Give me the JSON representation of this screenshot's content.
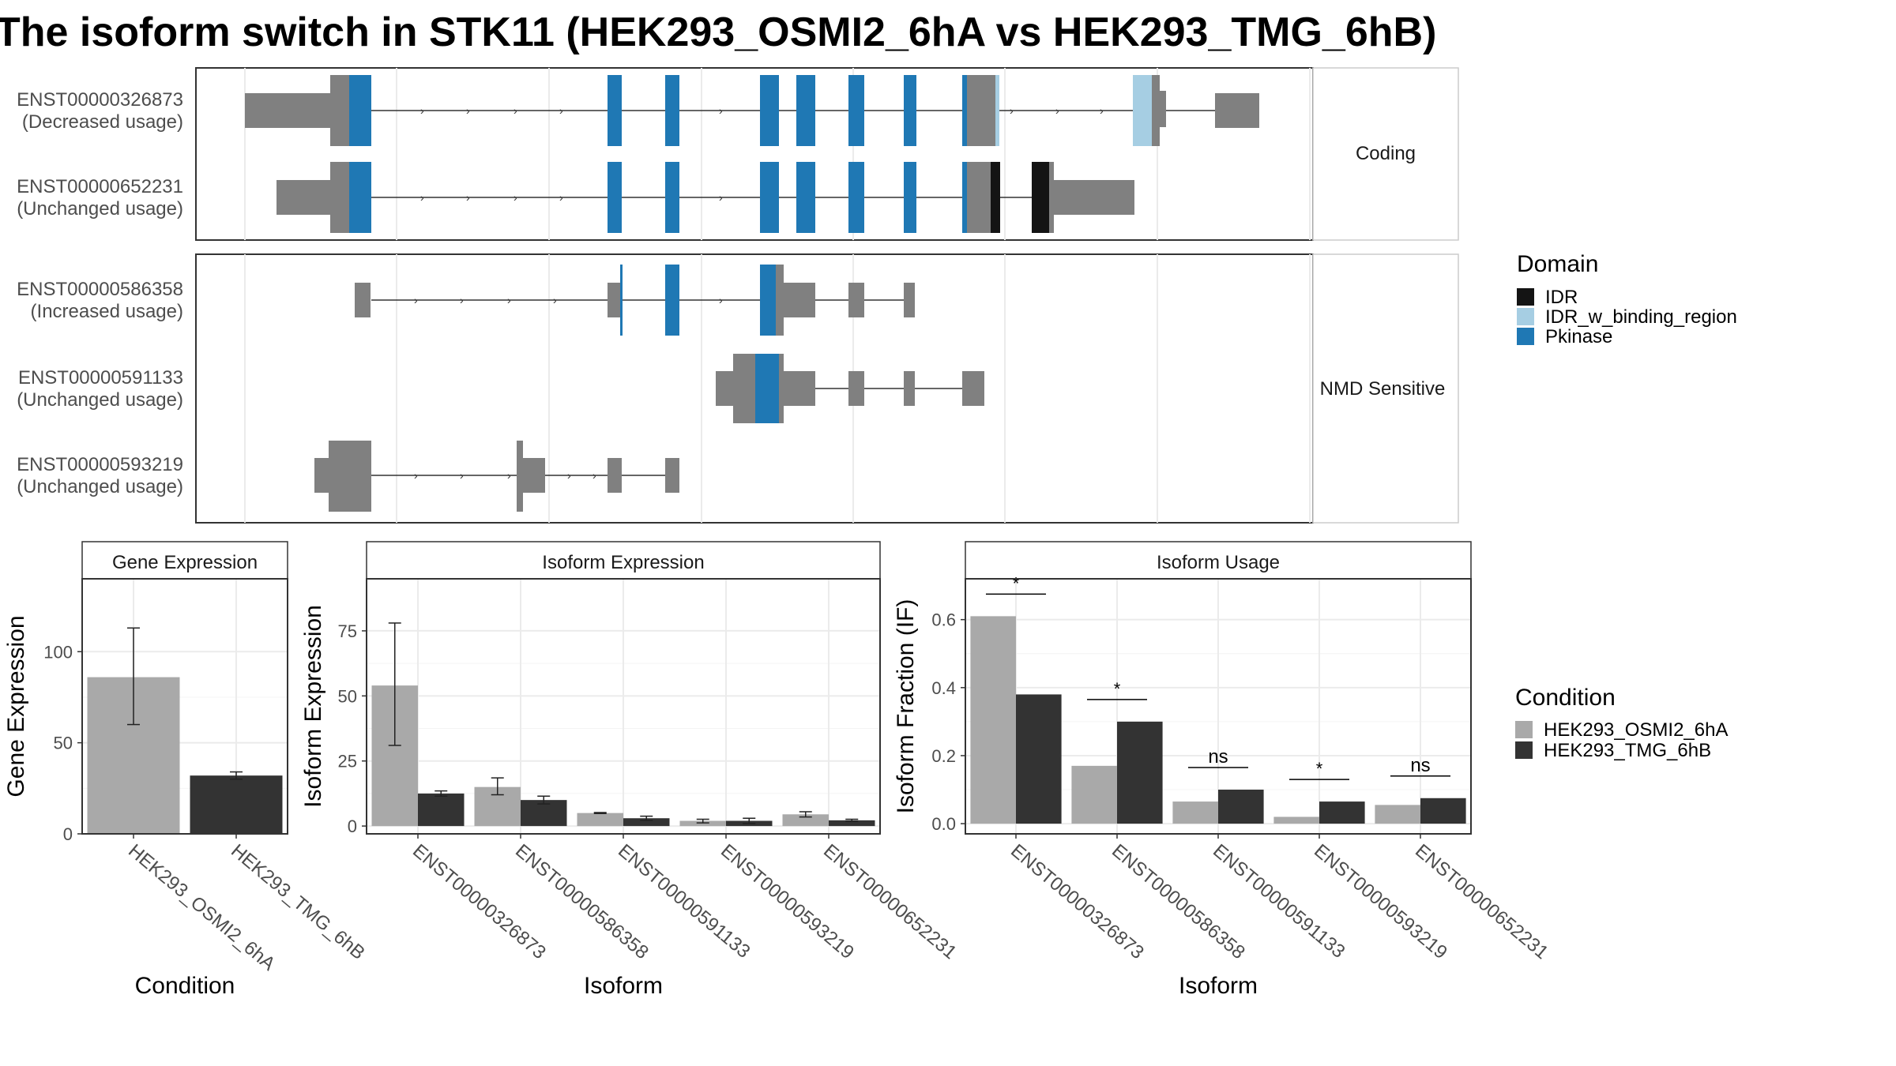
{
  "title": "The isoform switch in STK11 (HEK293_OSMI2_6hA vs HEK293_TMG_6hB)",
  "colors": {
    "domain_IDR": "#141414",
    "domain_IDR_w_binding_region": "#A6CEE3",
    "domain_Pkinase": "#1F78B4",
    "exon": "#808080",
    "cond_a": "#A9A9A9",
    "cond_b": "#333333"
  },
  "structure": {
    "groups": [
      {
        "label": "Coding",
        "isoforms": [
          {
            "id": "ENST00000326873",
            "usage": "(Decreased usage)"
          },
          {
            "id": "ENST00000652231",
            "usage": "(Unchanged usage)"
          }
        ]
      },
      {
        "label": "NMD Sensitive",
        "isoforms": [
          {
            "id": "ENST00000586358",
            "usage": "(Increased usage)"
          },
          {
            "id": "ENST00000591133",
            "usage": "(Unchanged usage)"
          },
          {
            "id": "ENST00000593219",
            "usage": "(Unchanged usage)"
          }
        ]
      }
    ]
  },
  "legend_domain": {
    "title": "Domain",
    "items": [
      {
        "label": "IDR",
        "color": "#141414"
      },
      {
        "label": "IDR_w_binding_region",
        "color": "#A6CEE3"
      },
      {
        "label": "Pkinase",
        "color": "#1F78B4"
      }
    ]
  },
  "legend_condition": {
    "title": "Condition",
    "items": [
      {
        "label": "HEK293_OSMI2_6hA",
        "color": "#A9A9A9"
      },
      {
        "label": "HEK293_TMG_6hB",
        "color": "#333333"
      }
    ]
  },
  "chart_data": [
    {
      "type": "bar",
      "title": "Gene Expression",
      "xlabel": "Condition",
      "ylabel": "Gene Expression",
      "categories": [
        "HEK293_OSMI2_6hA",
        "HEK293_TMG_6hB"
      ],
      "values": [
        86,
        32
      ],
      "errors": [
        [
          60,
          113
        ],
        [
          30,
          34
        ]
      ],
      "yticks": [
        0,
        50,
        100
      ],
      "ylim": [
        0,
        140
      ]
    },
    {
      "type": "bar",
      "title": "Isoform Expression",
      "xlabel": "Isoform",
      "ylabel": "Isoform Expression",
      "categories": [
        "ENST00000326873",
        "ENST00000586358",
        "ENST00000591133",
        "ENST00000593219",
        "ENST00000652231"
      ],
      "series": [
        {
          "name": "HEK293_OSMI2_6hA",
          "values": [
            54,
            15,
            5,
            2,
            4.5
          ],
          "errors": [
            [
              31,
              78
            ],
            [
              12,
              18.5
            ],
            [
              4.8,
              5.2
            ],
            [
              1.2,
              2.6
            ],
            [
              3.5,
              5.5
            ]
          ]
        },
        {
          "name": "HEK293_TMG_6hB",
          "values": [
            12.5,
            10,
            3,
            2,
            2.2
          ],
          "errors": [
            [
              11.5,
              13.5
            ],
            [
              8.5,
              11.5
            ],
            [
              2.2,
              3.8
            ],
            [
              1,
              3
            ],
            [
              1.8,
              2.6
            ]
          ]
        }
      ],
      "yticks": [
        0,
        25,
        50,
        75
      ],
      "ylim": [
        -3,
        95
      ]
    },
    {
      "type": "bar",
      "title": "Isoform Usage",
      "xlabel": "Isoform",
      "ylabel": "Isoform Fraction (IF)",
      "categories": [
        "ENST00000326873",
        "ENST00000586358",
        "ENST00000591133",
        "ENST00000593219",
        "ENST00000652231"
      ],
      "series": [
        {
          "name": "HEK293_OSMI2_6hA",
          "values": [
            0.61,
            0.17,
            0.065,
            0.02,
            0.055
          ]
        },
        {
          "name": "HEK293_TMG_6hB",
          "values": [
            0.38,
            0.3,
            0.1,
            0.065,
            0.075
          ]
        }
      ],
      "significance": [
        "*",
        "*",
        "ns",
        "*",
        "ns"
      ],
      "yticks": [
        0.0,
        0.2,
        0.4,
        0.6
      ],
      "ytick_labels": [
        "0.0",
        "0.2",
        "0.4",
        "0.6"
      ],
      "ylim": [
        -0.03,
        0.72
      ]
    }
  ]
}
